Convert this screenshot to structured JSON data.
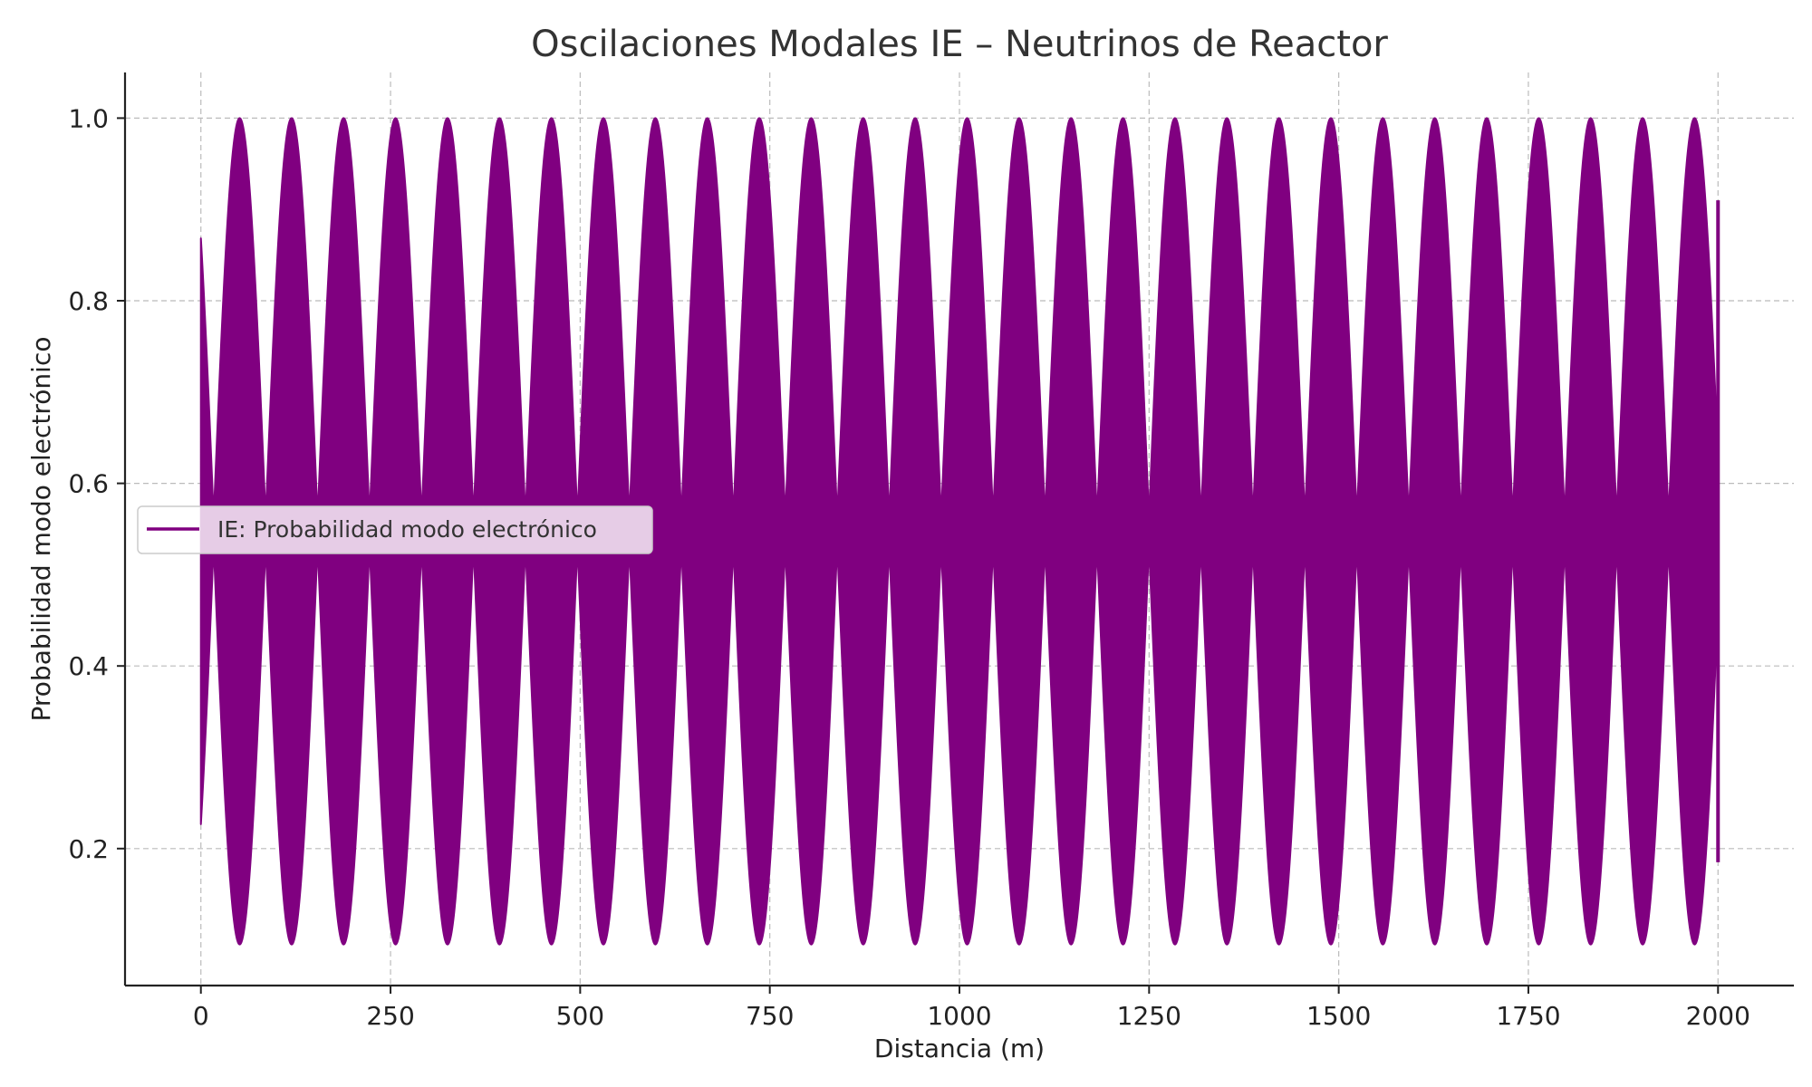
{
  "chart_data": {
    "type": "line",
    "title": "Oscilaciones Modales IE – Neutrinos de Reactor",
    "xlabel": "Distancia (m)",
    "ylabel": "Probabilidad modo electrónico",
    "xlim": [
      -100,
      2100
    ],
    "ylim": [
      0.05,
      1.05
    ],
    "x_ticks": [
      0,
      250,
      500,
      750,
      1000,
      1250,
      1500,
      1750,
      2000
    ],
    "y_ticks": [
      0.2,
      0.4,
      0.6,
      0.8,
      1.0
    ],
    "x_tick_labels": [
      "0",
      "250",
      "500",
      "750",
      "1000",
      "1250",
      "1500",
      "1750",
      "2000"
    ],
    "y_tick_labels": [
      "0.2",
      "0.4",
      "0.6",
      "0.8",
      "1.0"
    ],
    "grid": true,
    "legend_position": "center-left",
    "series": [
      {
        "name": "IE: Probabilidad modo electrónico",
        "color": "#800080",
        "x_range": [
          0,
          2000
        ],
        "envelope_period": 68.5,
        "envelope_peak_x": 34,
        "max_value": 1.0,
        "min_value": 0.095,
        "center_value": 0.5475,
        "final_value": 0.91
      }
    ]
  }
}
